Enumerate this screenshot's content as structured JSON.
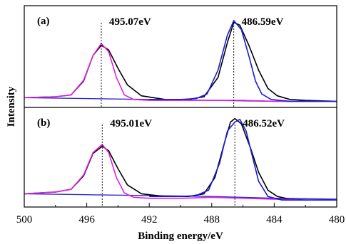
{
  "chart_data": {
    "type": "line",
    "xlabel": "Binding energy/eV",
    "ylabel": "Intensity",
    "xlim": [
      500,
      480
    ],
    "x_reversed": true,
    "x_ticks": [
      "500",
      "496",
      "492",
      "488",
      "484",
      "480"
    ],
    "grid": false,
    "panels": [
      {
        "label": "(a)",
        "annotations": [
          {
            "text": "495.07eV",
            "x": 495.07
          },
          {
            "text": "486.59eV",
            "x": 486.59
          }
        ],
        "baseline": {
          "x": [
            500,
            496,
            492,
            488,
            484,
            480
          ],
          "y": [
            0.06,
            0.05,
            0.04,
            0.03,
            0.02,
            0.02
          ]
        },
        "series": [
          {
            "color": "#000000",
            "x": [
              500,
              498,
              497,
              496.2,
              495.6,
              495.07,
              494.6,
              494.0,
              493.4,
              492.5,
              491.0,
              489.5,
              488.5,
              487.6,
              487.0,
              486.59,
              486.2,
              485.6,
              485.0,
              484.4,
              483.8,
              483.0,
              482.0,
              480
            ],
            "y": [
              0.06,
              0.07,
              0.09,
              0.24,
              0.52,
              0.63,
              0.58,
              0.38,
              0.2,
              0.08,
              0.04,
              0.04,
              0.07,
              0.28,
              0.66,
              0.88,
              0.85,
              0.62,
              0.36,
              0.16,
              0.08,
              0.04,
              0.03,
              0.02
            ]
          },
          {
            "color": "#e020e0",
            "x": [
              500,
              498,
              497,
              496.2,
              495.6,
              495.07,
              494.6,
              494.1,
              493.6,
              493.0,
              492.0,
              490.0,
              488.0,
              486.0,
              484.0,
              482.0,
              480
            ],
            "y": [
              0.06,
              0.07,
              0.09,
              0.25,
              0.52,
              0.65,
              0.56,
              0.28,
              0.09,
              0.04,
              0.03,
              0.03,
              0.03,
              0.03,
              0.02,
              0.02,
              0.02
            ]
          },
          {
            "color": "#1a1adf",
            "x": [
              492.0,
              490.0,
              489.0,
              488.3,
              487.6,
              487.0,
              486.59,
              486.1,
              485.6,
              485.2,
              484.8,
              484.2,
              483.0,
              480
            ],
            "y": [
              0.04,
              0.04,
              0.05,
              0.1,
              0.36,
              0.74,
              0.9,
              0.8,
              0.5,
              0.24,
              0.1,
              0.04,
              0.02,
              0.02
            ]
          }
        ]
      },
      {
        "label": "(b)",
        "annotations": [
          {
            "text": "495.01eV",
            "x": 495.01
          },
          {
            "text": "486.52eV",
            "x": 486.52
          }
        ],
        "baseline": {
          "x": [
            500,
            496,
            492,
            488,
            484,
            480
          ],
          "y": [
            0.1,
            0.09,
            0.08,
            0.07,
            0.05,
            0.04
          ]
        },
        "series": [
          {
            "color": "#000000",
            "x": [
              500,
              498,
              497,
              496.2,
              495.6,
              495.01,
              494.6,
              494.0,
              493.4,
              492.5,
              491.0,
              489.5,
              488.5,
              487.8,
              487.2,
              486.8,
              486.52,
              486.1,
              485.5,
              485.0,
              484.4,
              483.8,
              483.0,
              482.0,
              480
            ],
            "y": [
              0.1,
              0.12,
              0.15,
              0.3,
              0.55,
              0.63,
              0.58,
              0.38,
              0.2,
              0.1,
              0.07,
              0.07,
              0.1,
              0.28,
              0.66,
              0.9,
              0.94,
              0.88,
              0.6,
              0.34,
              0.14,
              0.07,
              0.04,
              0.03,
              0.03
            ]
          },
          {
            "color": "#e020e0",
            "x": [
              500,
              498,
              497,
              496.2,
              495.6,
              495.01,
              494.6,
              494.1,
              493.6,
              493.0,
              492.0,
              490.0,
              488.0,
              486.0,
              484.0,
              482.0,
              480
            ],
            "y": [
              0.1,
              0.12,
              0.15,
              0.31,
              0.56,
              0.65,
              0.56,
              0.28,
              0.11,
              0.06,
              0.05,
              0.05,
              0.06,
              0.05,
              0.04,
              0.03,
              0.03
            ]
          },
          {
            "color": "#1a1adf",
            "x": [
              492.0,
              490.0,
              489.0,
              488.2,
              487.5,
              487.0,
              486.52,
              486.2,
              485.8,
              485.4,
              485.0,
              484.4,
              483.5,
              482.0,
              480
            ],
            "y": [
              0.07,
              0.07,
              0.08,
              0.14,
              0.44,
              0.8,
              0.9,
              0.93,
              0.8,
              0.52,
              0.24,
              0.07,
              0.03,
              0.03,
              0.03
            ]
          }
        ]
      }
    ]
  }
}
